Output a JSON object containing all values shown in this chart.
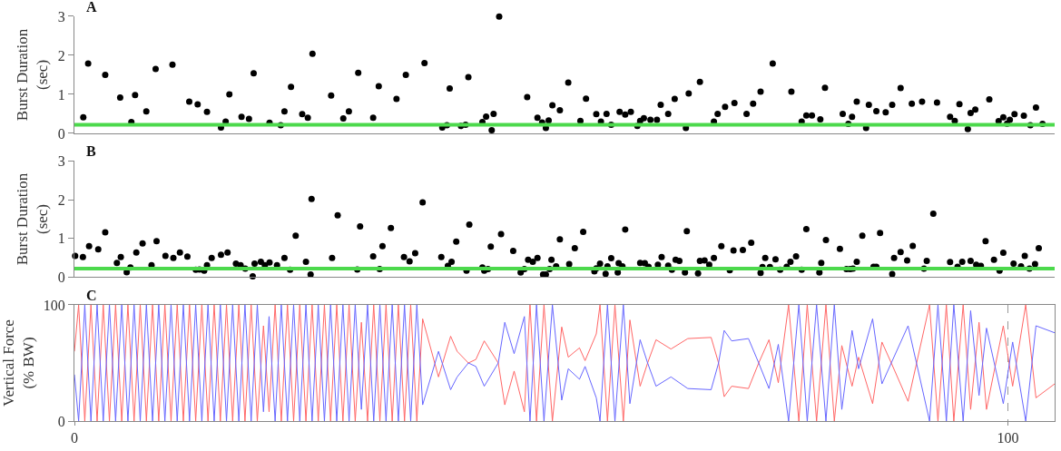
{
  "chart_data": [
    {
      "type": "scatter",
      "ylabel": "Burst Duration\n(sec)",
      "annotations": [
        "A"
      ],
      "xlim": [
        0,
        105
      ],
      "ylim": [
        0,
        3
      ],
      "yticks": [
        0,
        1,
        2,
        3
      ],
      "tick_labels": "y",
      "marker": "circle",
      "grid": false,
      "ref_lines": [
        {
          "axis": "y",
          "value": 0.22,
          "color": "#4cd94c"
        }
      ],
      "x": [
        0.95,
        1.47,
        3.3,
        4.9,
        6.1,
        6.5,
        7.7,
        8.7,
        10.5,
        12.3,
        13.2,
        14.2,
        15.7,
        16.2,
        16.6,
        17.9,
        18.7,
        19.2,
        20.9,
        22.1,
        22.5,
        23.2,
        24.4,
        25.0,
        25.5,
        27.5,
        28.8,
        29.4,
        30.4,
        32.0,
        32.6,
        34.5,
        35.5,
        37.5,
        39.4,
        39.9,
        40.2,
        41.4,
        41.9,
        42.2,
        43.7,
        44.1,
        44.7,
        44.9,
        45.5,
        48.5,
        49.6,
        50.1,
        50.5,
        50.8,
        51.2,
        52.0,
        52.9,
        54.2,
        54.8,
        55.9,
        56.4,
        57.0,
        57.5,
        58.4,
        59.0,
        59.6,
        60.3,
        60.6,
        61.0,
        61.7,
        62.4,
        62.8,
        63.6,
        64.3,
        65.5,
        65.8,
        67.0,
        68.5,
        68.9,
        69.7,
        70.7,
        72.0,
        72.7,
        73.5,
        74.8,
        76.8,
        77.9,
        78.4,
        79.0,
        79.9,
        80.4,
        82.3,
        82.9,
        83.3,
        83.8,
        84.8,
        85.1,
        85.9,
        86.9,
        87.6,
        88.5,
        89.7,
        90.8,
        92.4,
        93.8,
        94.3,
        94.8,
        95.7,
        96.0,
        96.5,
        98.0,
        99.0,
        99.5,
        99.9,
        100.2,
        100.7,
        101.7,
        102.4,
        103.0,
        103.7
      ],
      "series": [
        {
          "color": "#000000",
          "values": [
            0.41,
            1.79,
            1.5,
            0.92,
            0.29,
            0.98,
            0.56,
            1.65,
            1.76,
            0.81,
            0.74,
            0.55,
            0.15,
            0.3,
            1.0,
            0.42,
            0.37,
            1.54,
            0.27,
            0.21,
            0.56,
            1.19,
            0.49,
            0.4,
            2.04,
            0.97,
            0.38,
            0.56,
            1.55,
            0.4,
            1.21,
            0.88,
            1.5,
            1.8,
            0.15,
            0.21,
            1.15,
            0.19,
            0.22,
            1.44,
            0.29,
            0.43,
            0.08,
            0.5,
            2.99,
            0.93,
            0.4,
            0.28,
            0.14,
            0.33,
            0.72,
            0.59,
            1.3,
            0.32,
            0.89,
            0.49,
            0.3,
            0.5,
            0.22,
            0.55,
            0.48,
            0.55,
            0.19,
            0.32,
            0.39,
            0.35,
            0.35,
            0.73,
            0.5,
            0.88,
            0.14,
            1.02,
            1.32,
            0.3,
            0.5,
            0.68,
            0.78,
            0.5,
            0.76,
            1.07,
            1.79,
            1.07,
            0.3,
            0.46,
            0.46,
            0.36,
            1.17,
            0.5,
            0.24,
            0.42,
            0.81,
            0.14,
            0.73,
            0.57,
            0.54,
            0.73,
            1.16,
            0.76,
            0.81,
            0.79,
            0.42,
            0.32,
            0.75,
            0.11,
            0.52,
            0.61,
            0.87,
            0.31,
            0.41,
            0.25,
            0.35,
            0.49,
            0.45,
            0.21,
            0.66,
            0.24
          ]
        }
      ]
    },
    {
      "type": "scatter",
      "ylabel": "Burst Duration\n(sec)",
      "annotations": [
        "B"
      ],
      "xlim": [
        0,
        105
      ],
      "ylim": [
        0,
        3
      ],
      "yticks": [
        0,
        1,
        2,
        3
      ],
      "tick_labels": "y",
      "marker": "circle",
      "grid": false,
      "ref_lines": [
        {
          "axis": "y",
          "value": 0.22,
          "color": "#4cd94c"
        }
      ],
      "x": [
        0.08,
        0.91,
        1.57,
        2.55,
        3.3,
        4.55,
        4.97,
        5.6,
        6.0,
        6.63,
        7.3,
        8.26,
        8.8,
        9.75,
        10.6,
        11.3,
        12.1,
        13.0,
        13.4,
        13.9,
        14.2,
        14.7,
        15.7,
        16.4,
        17.3,
        17.8,
        18.3,
        19.1,
        19.3,
        19.97,
        20.4,
        20.9,
        21.7,
        22.5,
        23.1,
        23.7,
        24.8,
        25.3,
        25.4,
        27.6,
        28.2,
        30.3,
        30.6,
        32.0,
        32.7,
        33.0,
        33.9,
        35.3,
        35.9,
        36.5,
        37.3,
        39.3,
        40.0,
        40.4,
        40.9,
        42.0,
        42.3,
        43.7,
        43.9,
        44.3,
        44.6,
        45.7,
        47.0,
        47.8,
        48.2,
        48.6,
        49.1,
        49.6,
        50.2,
        50.5,
        50.9,
        51.1,
        51.6,
        52.0,
        53.0,
        53.6,
        54.5,
        55.7,
        55.9,
        56.3,
        56.9,
        57.1,
        57.5,
        58.2,
        58.3,
        58.7,
        59.0,
        60.6,
        61.1,
        61.5,
        62.5,
        62.9,
        63.6,
        64.0,
        64.4,
        64.8,
        65.4,
        65.6,
        66.8,
        67.0,
        67.5,
        68.0,
        68.5,
        69.3,
        70.2,
        70.6,
        71.6,
        72.5,
        73.5,
        73.7,
        74.0,
        74.5,
        75.1,
        75.6,
        76.3,
        76.7,
        77.3,
        77.9,
        78.4,
        79.8,
        80.0,
        80.5,
        82.0,
        82.7,
        83.1,
        83.4,
        83.8,
        84.4,
        85.6,
        85.9,
        86.3,
        87.6,
        87.8,
        88.5,
        89.2,
        89.8,
        91.0,
        91.3,
        92.0,
        93.8,
        94.6,
        95.1,
        96.0,
        96.6,
        97.1,
        97.6,
        98.5,
        99.1,
        99.5,
        100.6,
        101.4,
        101.8,
        102.3,
        102.9,
        103.3
      ],
      "series": [
        {
          "color": "#000000",
          "values": [
            0.55,
            0.52,
            0.8,
            0.72,
            1.16,
            0.37,
            0.52,
            0.13,
            0.25,
            0.64,
            0.87,
            0.31,
            0.93,
            0.55,
            0.5,
            0.64,
            0.53,
            0.19,
            0.2,
            0.17,
            0.31,
            0.5,
            0.58,
            0.64,
            0.35,
            0.31,
            0.22,
            0.02,
            0.35,
            0.4,
            0.31,
            0.38,
            0.31,
            0.5,
            0.19,
            1.07,
            0.4,
            0.07,
            2.02,
            0.5,
            1.6,
            0.2,
            1.31,
            0.54,
            0.21,
            0.8,
            1.27,
            0.52,
            0.41,
            0.62,
            1.93,
            0.52,
            0.29,
            0.4,
            0.92,
            0.17,
            1.36,
            0.25,
            0.17,
            0.21,
            0.79,
            1.11,
            0.68,
            0.12,
            0.21,
            0.45,
            0.4,
            0.5,
            0.07,
            0.07,
            0.21,
            0.45,
            0.28,
            0.98,
            0.34,
            0.75,
            1.17,
            0.15,
            0.23,
            0.35,
            0.09,
            0.28,
            0.49,
            0.12,
            0.36,
            0.28,
            1.23,
            0.37,
            0.36,
            0.27,
            0.32,
            0.52,
            0.3,
            0.19,
            0.45,
            0.42,
            0.12,
            1.19,
            0.1,
            0.42,
            0.43,
            0.32,
            0.5,
            0.8,
            0.18,
            0.69,
            0.7,
            0.89,
            0.11,
            0.26,
            0.5,
            0.26,
            0.46,
            0.19,
            0.27,
            0.4,
            0.54,
            0.19,
            1.24,
            0.12,
            0.37,
            0.96,
            0.73,
            0.21,
            0.21,
            0.22,
            0.4,
            1.07,
            0.27,
            0.27,
            1.14,
            0.08,
            0.5,
            0.65,
            0.43,
            0.81,
            0.22,
            0.42,
            1.64,
            0.39,
            0.27,
            0.4,
            0.42,
            0.32,
            0.29,
            0.93,
            0.45,
            0.17,
            0.63,
            0.35,
            0.28,
            0.55,
            0.22,
            0.34,
            0.75
          ]
        }
      ]
    },
    {
      "type": "line",
      "ylabel": "Vertical Force\n(% BW)",
      "annotations": [
        "C"
      ],
      "xlim": [
        0,
        105
      ],
      "xticks": [
        0,
        100
      ],
      "ylim": [
        0,
        100
      ],
      "yticks": [
        0,
        100
      ],
      "grid": "x",
      "line_style": "solid",
      "x": [
        0,
        0.45,
        1.11,
        1.77,
        2.43,
        3.09,
        3.75,
        4.41,
        5.07,
        5.73,
        6.39,
        7.05,
        7.71,
        8.37,
        9.03,
        9.69,
        10.35,
        11.01,
        11.67,
        12.33,
        12.99,
        13.65,
        14.31,
        14.97,
        15.63,
        16.29,
        16.95,
        17.61,
        18.27,
        18.93,
        19.59,
        20.25,
        20.85,
        21.5,
        22.16,
        22.82,
        23.48,
        24.14,
        24.8,
        25.46,
        26.12,
        26.78,
        27.44,
        28.1,
        28.76,
        29.42,
        30.08,
        30.74,
        31.4,
        32.06,
        32.72,
        33.38,
        34.04,
        34.7,
        35.36,
        36.02,
        36.68,
        37.3,
        39.0,
        40.3,
        41.0,
        42.2,
        43.0,
        43.9,
        45.4,
        46.1,
        47.1,
        48.2,
        48.8,
        49.5,
        50.3,
        51.2,
        52.2,
        52.9,
        54.1,
        54.7,
        55.9,
        56.3,
        57.1,
        57.9,
        58.8,
        59.5,
        60.6,
        61.4,
        62.3,
        63.9,
        65.7,
        68.2,
        69.0,
        69.6,
        70.4,
        72.2,
        73.3,
        74.4,
        75.4,
        76.5,
        77.6,
        78.5,
        79.5,
        80.5,
        81.4,
        82.2,
        83.3,
        84.0,
        85.5,
        86.5,
        87.5,
        89.3,
        91.6,
        92.5,
        93.4,
        94.2,
        95.2,
        96.0,
        96.9,
        97.7,
        99.5,
        100.5,
        101.9,
        103.0,
        105.0
      ],
      "series": [
        {
          "color": "#ff6666",
          "values": [
            60,
            100,
            0,
            100,
            0,
            100,
            0,
            100,
            0,
            100,
            0,
            100,
            0,
            100,
            0,
            100,
            0,
            100,
            0,
            100,
            0,
            100,
            0,
            100,
            0,
            100,
            0,
            100,
            0,
            100,
            0,
            82,
            8,
            100,
            0,
            100,
            0,
            100,
            0,
            100,
            0,
            100,
            0,
            100,
            0,
            100,
            0,
            85,
            0,
            100,
            0,
            100,
            0,
            100,
            0,
            100,
            0,
            88,
            38,
            73,
            60,
            50,
            53,
            69,
            50,
            14,
            43,
            8,
            100,
            0,
            100,
            0,
            81,
            55,
            63,
            52,
            75,
            100,
            0,
            100,
            0,
            87,
            30,
            50,
            70,
            62,
            71,
            72,
            50,
            21,
            30,
            28,
            50,
            70,
            33,
            100,
            0,
            100,
            0,
            100,
            0,
            65,
            30,
            55,
            15,
            68,
            50,
            17,
            100,
            0,
            100,
            0,
            100,
            10,
            85,
            10,
            82,
            30,
            100,
            20,
            32
          ]
        },
        {
          "color": "#6666ff",
          "values": [
            40,
            0,
            100,
            0,
            100,
            0,
            100,
            0,
            100,
            0,
            100,
            0,
            100,
            0,
            100,
            0,
            100,
            0,
            100,
            0,
            100,
            0,
            100,
            0,
            100,
            0,
            100,
            0,
            100,
            0,
            100,
            8,
            90,
            0,
            100,
            0,
            100,
            0,
            100,
            0,
            100,
            0,
            100,
            0,
            100,
            0,
            100,
            10,
            100,
            0,
            100,
            0,
            100,
            0,
            100,
            0,
            100,
            14,
            60,
            27,
            38,
            50,
            47,
            30,
            50,
            85,
            58,
            90,
            0,
            100,
            0,
            100,
            18,
            45,
            36,
            47,
            20,
            0,
            100,
            0,
            100,
            15,
            70,
            50,
            30,
            38,
            28,
            27,
            50,
            78,
            69,
            71,
            50,
            28,
            66,
            0,
            100,
            0,
            100,
            0,
            100,
            10,
            78,
            45,
            88,
            32,
            50,
            82,
            0,
            100,
            0,
            100,
            0,
            95,
            22,
            80,
            15,
            68,
            0,
            82,
            76
          ]
        }
      ]
    }
  ]
}
